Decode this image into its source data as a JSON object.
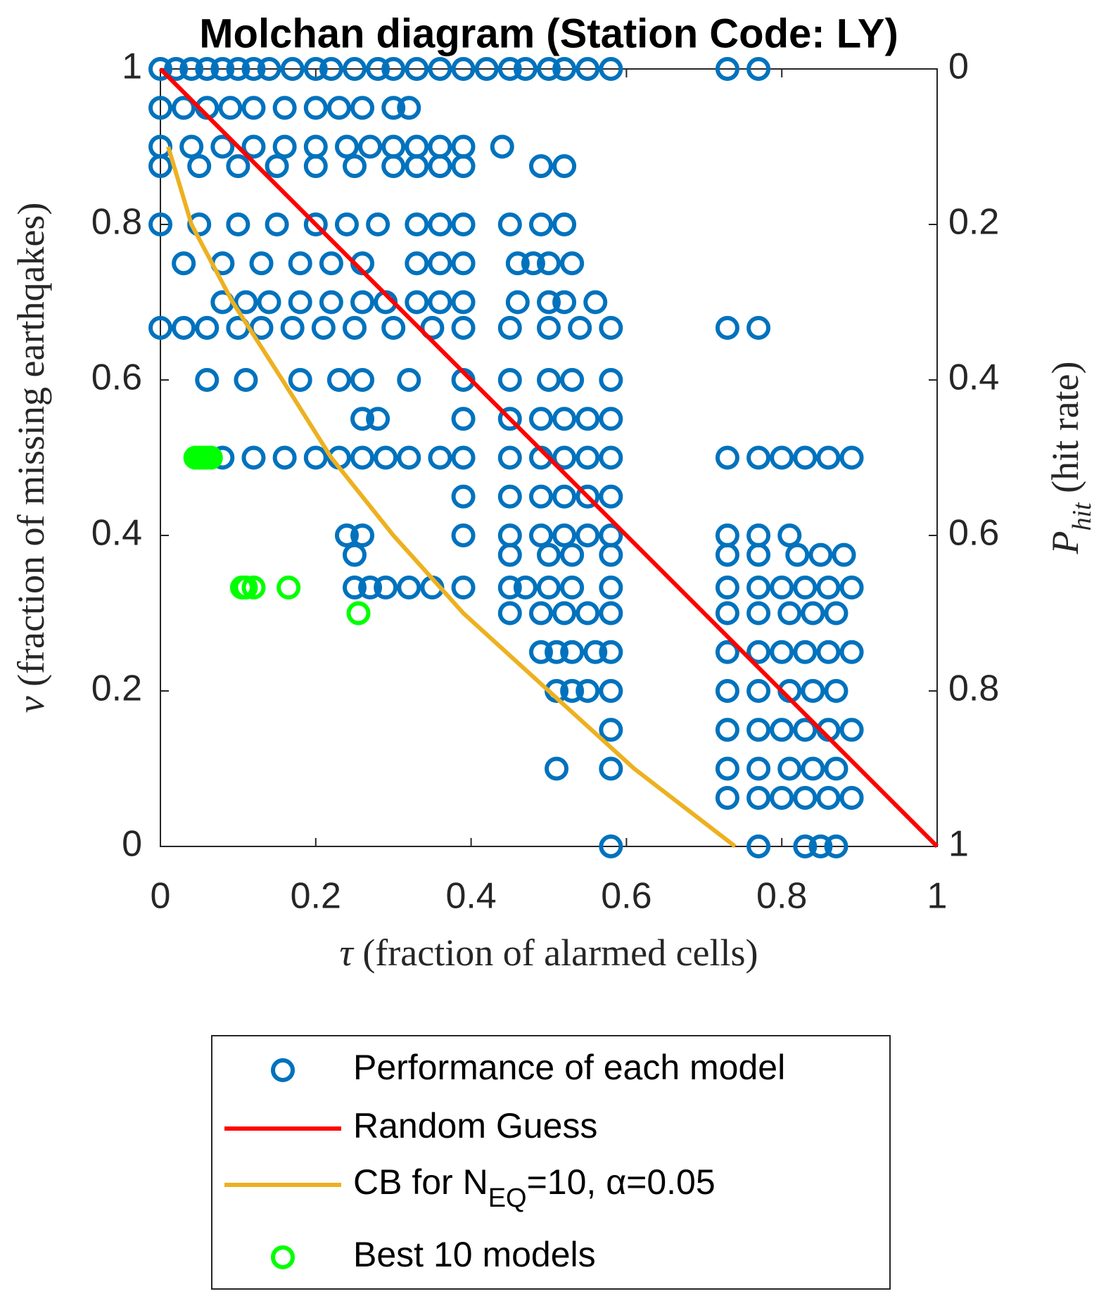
{
  "chart_data": {
    "type": "scatter",
    "title": "Molchan diagram (Station Code: LY)",
    "xlabel": [
      "τ",
      " (fraction of alarmed cells)"
    ],
    "ylabel": [
      "ν",
      " (fraction of missing earthqakes)"
    ],
    "y2label": [
      "P",
      "hit",
      " (hit rate)"
    ],
    "xlim": [
      0,
      1
    ],
    "xticks": [
      0,
      0.2,
      0.4,
      0.6,
      0.8,
      1
    ],
    "ylim": [
      0,
      1
    ],
    "yticks": [
      0,
      0.2,
      0.4,
      0.6,
      0.8,
      1
    ],
    "y2lim": [
      1,
      0
    ],
    "y2ticks": [
      0,
      0.2,
      0.4,
      0.6,
      0.8,
      1
    ],
    "grid": false,
    "series": [
      {
        "name": [
          "Performance of each model"
        ],
        "mode": "markers",
        "color": "#0072bd",
        "x": [
          0,
          0.02,
          0.04,
          0.06,
          0.08,
          0.1,
          0.12,
          0.14,
          0.17,
          0.2,
          0.22,
          0.25,
          0.28,
          0.3,
          0.33,
          0.36,
          0.39,
          0.42,
          0.45,
          0.47,
          0.5,
          0.52,
          0.55,
          0.58,
          0.73,
          0.77,
          0,
          0.03,
          0.06,
          0.09,
          0.12,
          0.16,
          0.2,
          0.23,
          0.26,
          0.3,
          0.32,
          0,
          0.04,
          0.08,
          0.12,
          0.16,
          0.2,
          0.24,
          0.27,
          0.3,
          0.33,
          0.36,
          0.39,
          0.44,
          0,
          0.05,
          0.1,
          0.15,
          0.2,
          0.25,
          0.3,
          0.33,
          0.36,
          0.39,
          0.49,
          0.52,
          0,
          0.05,
          0.1,
          0.15,
          0.2,
          0.24,
          0.28,
          0.33,
          0.36,
          0.39,
          0.45,
          0.49,
          0.52,
          0.03,
          0.08,
          0.13,
          0.18,
          0.22,
          0.26,
          0.33,
          0.36,
          0.39,
          0.46,
          0.48,
          0.5,
          0.53,
          0.08,
          0.11,
          0.14,
          0.18,
          0.22,
          0.26,
          0.29,
          0.33,
          0.36,
          0.39,
          0.46,
          0.5,
          0.52,
          0.56,
          0,
          0.03,
          0.06,
          0.1,
          0.13,
          0.17,
          0.21,
          0.25,
          0.3,
          0.35,
          0.39,
          0.45,
          0.5,
          0.54,
          0.58,
          0.73,
          0.77,
          0.06,
          0.11,
          0.18,
          0.23,
          0.26,
          0.32,
          0.39,
          0.45,
          0.5,
          0.53,
          0.58,
          0.26,
          0.28,
          0.39,
          0.45,
          0.49,
          0.52,
          0.55,
          0.58,
          0.08,
          0.12,
          0.16,
          0.2,
          0.23,
          0.26,
          0.29,
          0.32,
          0.36,
          0.39,
          0.45,
          0.49,
          0.52,
          0.55,
          0.58,
          0.73,
          0.77,
          0.8,
          0.83,
          0.86,
          0.89,
          0.39,
          0.45,
          0.49,
          0.52,
          0.55,
          0.58,
          0.24,
          0.26,
          0.39,
          0.45,
          0.49,
          0.52,
          0.55,
          0.58,
          0.73,
          0.77,
          0.81,
          0.25,
          0.45,
          0.5,
          0.53,
          0.58,
          0.73,
          0.77,
          0.82,
          0.85,
          0.88,
          0.25,
          0.27,
          0.29,
          0.32,
          0.35,
          0.39,
          0.45,
          0.47,
          0.5,
          0.53,
          0.58,
          0.73,
          0.77,
          0.8,
          0.83,
          0.86,
          0.89,
          0.45,
          0.49,
          0.52,
          0.55,
          0.58,
          0.73,
          0.77,
          0.81,
          0.84,
          0.87,
          0.49,
          0.51,
          0.53,
          0.56,
          0.58,
          0.73,
          0.77,
          0.8,
          0.83,
          0.86,
          0.89,
          0.51,
          0.53,
          0.55,
          0.58,
          0.73,
          0.77,
          0.81,
          0.84,
          0.87,
          0.58,
          0.73,
          0.77,
          0.8,
          0.83,
          0.86,
          0.89,
          0.51,
          0.58,
          0.73,
          0.77,
          0.81,
          0.84,
          0.87,
          0.73,
          0.77,
          0.8,
          0.83,
          0.86,
          0.89,
          0.58,
          0.77,
          0.83,
          0.85,
          0.87
        ],
        "values": [
          1,
          1,
          1,
          1,
          1,
          1,
          1,
          1,
          1,
          1,
          1,
          1,
          1,
          1,
          1,
          1,
          1,
          1,
          1,
          1,
          1,
          1,
          1,
          1,
          1,
          1,
          0.95,
          0.95,
          0.95,
          0.95,
          0.95,
          0.95,
          0.95,
          0.95,
          0.95,
          0.95,
          0.95,
          0.9,
          0.9,
          0.9,
          0.9,
          0.9,
          0.9,
          0.9,
          0.9,
          0.9,
          0.9,
          0.9,
          0.9,
          0.9,
          0.875,
          0.875,
          0.875,
          0.875,
          0.875,
          0.875,
          0.875,
          0.875,
          0.875,
          0.875,
          0.875,
          0.875,
          0.8,
          0.8,
          0.8,
          0.8,
          0.8,
          0.8,
          0.8,
          0.8,
          0.8,
          0.8,
          0.8,
          0.8,
          0.8,
          0.75,
          0.75,
          0.75,
          0.75,
          0.75,
          0.75,
          0.75,
          0.75,
          0.75,
          0.75,
          0.75,
          0.75,
          0.75,
          0.7,
          0.7,
          0.7,
          0.7,
          0.7,
          0.7,
          0.7,
          0.7,
          0.7,
          0.7,
          0.7,
          0.7,
          0.7,
          0.7,
          0.667,
          0.667,
          0.667,
          0.667,
          0.667,
          0.667,
          0.667,
          0.667,
          0.667,
          0.667,
          0.667,
          0.667,
          0.667,
          0.667,
          0.667,
          0.667,
          0.667,
          0.6,
          0.6,
          0.6,
          0.6,
          0.6,
          0.6,
          0.6,
          0.6,
          0.6,
          0.6,
          0.6,
          0.55,
          0.55,
          0.55,
          0.55,
          0.55,
          0.55,
          0.55,
          0.55,
          0.5,
          0.5,
          0.5,
          0.5,
          0.5,
          0.5,
          0.5,
          0.5,
          0.5,
          0.5,
          0.5,
          0.5,
          0.5,
          0.5,
          0.5,
          0.5,
          0.5,
          0.5,
          0.5,
          0.5,
          0.5,
          0.45,
          0.45,
          0.45,
          0.45,
          0.45,
          0.45,
          0.4,
          0.4,
          0.4,
          0.4,
          0.4,
          0.4,
          0.4,
          0.4,
          0.4,
          0.4,
          0.4,
          0.375,
          0.375,
          0.375,
          0.375,
          0.375,
          0.375,
          0.375,
          0.375,
          0.375,
          0.375,
          0.333,
          0.333,
          0.333,
          0.333,
          0.333,
          0.333,
          0.333,
          0.333,
          0.333,
          0.333,
          0.333,
          0.333,
          0.333,
          0.333,
          0.333,
          0.333,
          0.333,
          0.3,
          0.3,
          0.3,
          0.3,
          0.3,
          0.3,
          0.3,
          0.3,
          0.3,
          0.3,
          0.25,
          0.25,
          0.25,
          0.25,
          0.25,
          0.25,
          0.25,
          0.25,
          0.25,
          0.25,
          0.25,
          0.2,
          0.2,
          0.2,
          0.2,
          0.2,
          0.2,
          0.2,
          0.2,
          0.2,
          0.15,
          0.15,
          0.15,
          0.15,
          0.15,
          0.15,
          0.15,
          0.1,
          0.1,
          0.1,
          0.1,
          0.1,
          0.1,
          0.1,
          0.0625,
          0.0625,
          0.0625,
          0.0625,
          0.0625,
          0.0625,
          0,
          0,
          0,
          0,
          0
        ]
      },
      {
        "name": [
          "Random Guess"
        ],
        "mode": "line",
        "color": "#ff0000",
        "x": [
          0,
          1
        ],
        "values": [
          1,
          0
        ]
      },
      {
        "name": [
          "CB for N",
          "EQ",
          "=10, α=0.05"
        ],
        "mode": "line",
        "color": "#edb120",
        "x": [
          0.01,
          0.04,
          0.093,
          0.157,
          0.22,
          0.3,
          0.39,
          0.5,
          0.61,
          0.74
        ],
        "values": [
          0.9,
          0.8,
          0.7,
          0.6,
          0.5,
          0.4,
          0.3,
          0.2,
          0.1,
          0
        ]
      },
      {
        "name": [
          "Best 10 models"
        ],
        "mode": "markers",
        "color": "#00ff00",
        "x": [
          0.045,
          0.05,
          0.055,
          0.06,
          0.065,
          0.105,
          0.11,
          0.12,
          0.165,
          0.255
        ],
        "values": [
          0.5,
          0.5,
          0.5,
          0.5,
          0.5,
          0.333,
          0.333,
          0.333,
          0.333,
          0.3
        ]
      }
    ]
  }
}
